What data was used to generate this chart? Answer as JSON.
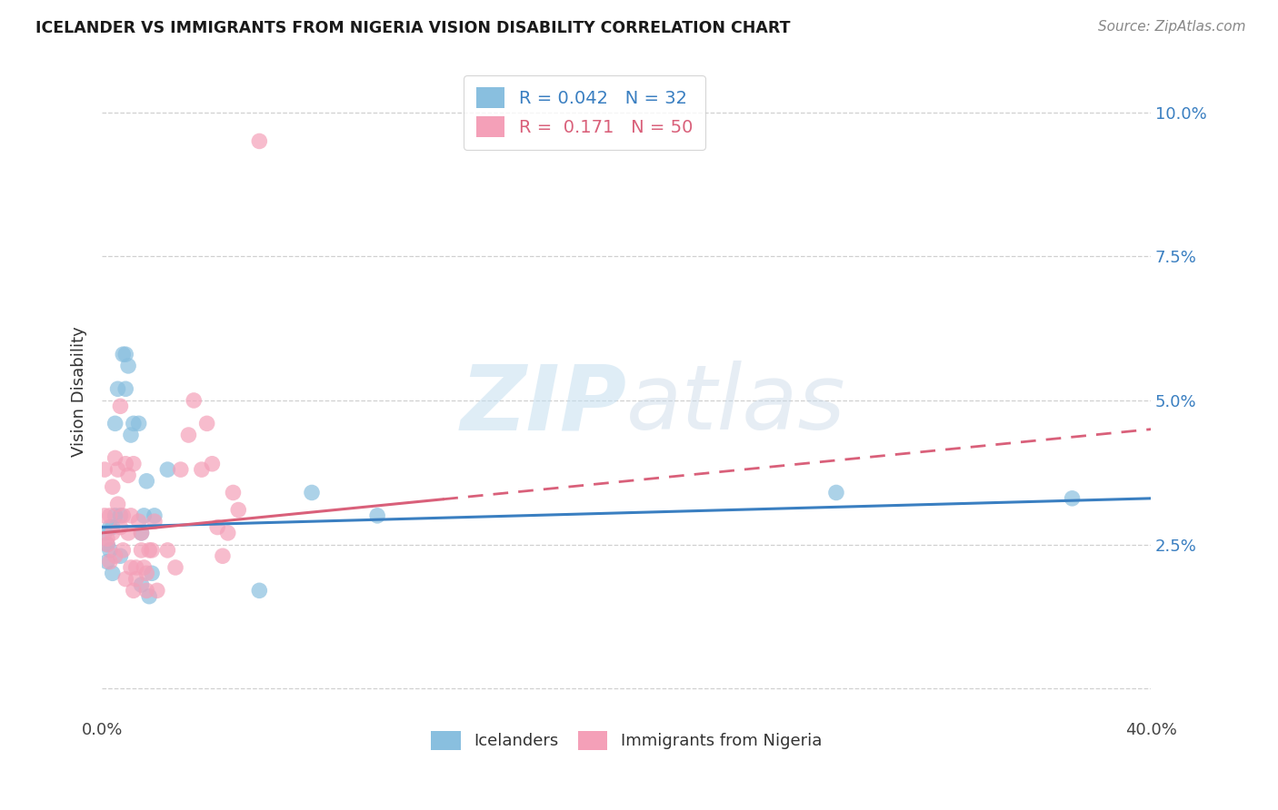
{
  "title": "ICELANDER VS IMMIGRANTS FROM NIGERIA VISION DISABILITY CORRELATION CHART",
  "source": "Source: ZipAtlas.com",
  "ylabel": "Vision Disability",
  "yticks": [
    0.0,
    0.025,
    0.05,
    0.075,
    0.1
  ],
  "ytick_labels": [
    "",
    "2.5%",
    "5.0%",
    "7.5%",
    "10.0%"
  ],
  "xlim": [
    0.0,
    0.4
  ],
  "ylim": [
    -0.005,
    0.108
  ],
  "watermark": "ZIPatlas",
  "legend_r_blue": "R = 0.042",
  "legend_n_blue": "N = 32",
  "legend_r_pink": "R =  0.171",
  "legend_n_pink": "N = 50",
  "blue_color": "#89bfdf",
  "pink_color": "#f4a0b8",
  "blue_line_color": "#3a7fc1",
  "pink_line_color": "#d9607a",
  "blue_scatter": [
    [
      0.001,
      0.027
    ],
    [
      0.002,
      0.025
    ],
    [
      0.002,
      0.022
    ],
    [
      0.003,
      0.028
    ],
    [
      0.003,
      0.024
    ],
    [
      0.004,
      0.02
    ],
    [
      0.004,
      0.028
    ],
    [
      0.005,
      0.03
    ],
    [
      0.005,
      0.046
    ],
    [
      0.006,
      0.052
    ],
    [
      0.007,
      0.03
    ],
    [
      0.007,
      0.023
    ],
    [
      0.008,
      0.058
    ],
    [
      0.009,
      0.052
    ],
    [
      0.009,
      0.058
    ],
    [
      0.01,
      0.056
    ],
    [
      0.011,
      0.044
    ],
    [
      0.012,
      0.046
    ],
    [
      0.014,
      0.046
    ],
    [
      0.015,
      0.018
    ],
    [
      0.015,
      0.027
    ],
    [
      0.016,
      0.03
    ],
    [
      0.017,
      0.036
    ],
    [
      0.018,
      0.016
    ],
    [
      0.019,
      0.02
    ],
    [
      0.02,
      0.03
    ],
    [
      0.025,
      0.038
    ],
    [
      0.06,
      0.017
    ],
    [
      0.08,
      0.034
    ],
    [
      0.105,
      0.03
    ],
    [
      0.28,
      0.034
    ],
    [
      0.37,
      0.033
    ]
  ],
  "pink_scatter": [
    [
      0.001,
      0.03
    ],
    [
      0.001,
      0.038
    ],
    [
      0.002,
      0.025
    ],
    [
      0.002,
      0.026
    ],
    [
      0.003,
      0.022
    ],
    [
      0.003,
      0.03
    ],
    [
      0.004,
      0.035
    ],
    [
      0.004,
      0.027
    ],
    [
      0.005,
      0.023
    ],
    [
      0.005,
      0.04
    ],
    [
      0.006,
      0.038
    ],
    [
      0.006,
      0.032
    ],
    [
      0.007,
      0.028
    ],
    [
      0.007,
      0.049
    ],
    [
      0.008,
      0.024
    ],
    [
      0.008,
      0.03
    ],
    [
      0.009,
      0.019
    ],
    [
      0.009,
      0.039
    ],
    [
      0.01,
      0.037
    ],
    [
      0.01,
      0.027
    ],
    [
      0.011,
      0.021
    ],
    [
      0.011,
      0.03
    ],
    [
      0.012,
      0.017
    ],
    [
      0.012,
      0.039
    ],
    [
      0.013,
      0.021
    ],
    [
      0.013,
      0.019
    ],
    [
      0.014,
      0.029
    ],
    [
      0.015,
      0.024
    ],
    [
      0.015,
      0.027
    ],
    [
      0.016,
      0.021
    ],
    [
      0.017,
      0.017
    ],
    [
      0.017,
      0.02
    ],
    [
      0.018,
      0.024
    ],
    [
      0.019,
      0.024
    ],
    [
      0.02,
      0.029
    ],
    [
      0.021,
      0.017
    ],
    [
      0.025,
      0.024
    ],
    [
      0.028,
      0.021
    ],
    [
      0.06,
      0.095
    ],
    [
      0.03,
      0.038
    ],
    [
      0.033,
      0.044
    ],
    [
      0.035,
      0.05
    ],
    [
      0.038,
      0.038
    ],
    [
      0.04,
      0.046
    ],
    [
      0.042,
      0.039
    ],
    [
      0.044,
      0.028
    ],
    [
      0.046,
      0.023
    ],
    [
      0.048,
      0.027
    ],
    [
      0.05,
      0.034
    ],
    [
      0.052,
      0.031
    ]
  ],
  "blue_trend_x": [
    0.0,
    0.4
  ],
  "blue_trend_y": [
    0.028,
    0.033
  ],
  "pink_trend_x": [
    0.0,
    0.4
  ],
  "pink_trend_y": [
    0.027,
    0.045
  ],
  "grid_color": "#d0d0d0",
  "background_color": "#ffffff"
}
